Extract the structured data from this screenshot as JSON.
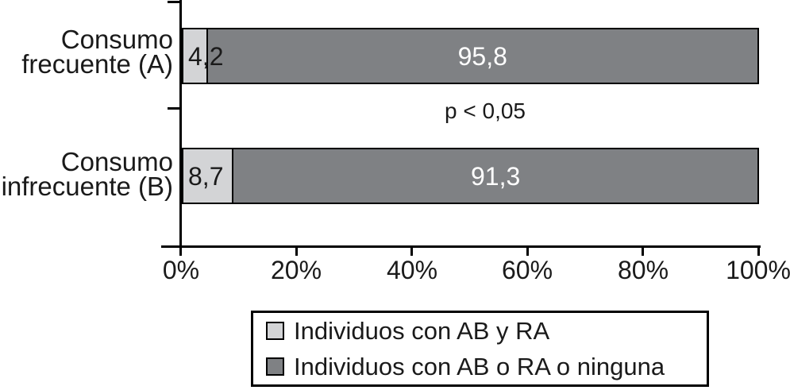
{
  "chart_data": {
    "type": "bar",
    "orientation": "horizontal",
    "stacked": true,
    "unit": "%",
    "xlim": [
      0,
      100
    ],
    "x_ticks": [
      "0%",
      "20%",
      "40%",
      "60%",
      "80%",
      "100%"
    ],
    "grid": false,
    "legend_position": "bottom-center",
    "categories": [
      "Consumo frecuente (A)",
      "Consumo infrecuente (B)"
    ],
    "category_lines": [
      [
        "Consumo",
        "frecuente (A)"
      ],
      [
        "Consumo",
        "infrecuente (B)"
      ]
    ],
    "series": [
      {
        "name": "Individuos con AB y RA",
        "color": "#d3d4d6",
        "values": [
          4.2,
          8.7
        ]
      },
      {
        "name": "Individuos con AB o RA o ninguna",
        "color": "#7f8184",
        "values": [
          95.8,
          91.3
        ]
      }
    ],
    "value_labels": [
      [
        "4,2",
        "95,8"
      ],
      [
        "8,7",
        "91,3"
      ]
    ],
    "annotation": "p < 0,05"
  },
  "colors": {
    "axis": "#000000",
    "value_label_on_light": "#1a1a1a",
    "value_label_on_dark": "#ffffff",
    "background": "#ffffff"
  }
}
